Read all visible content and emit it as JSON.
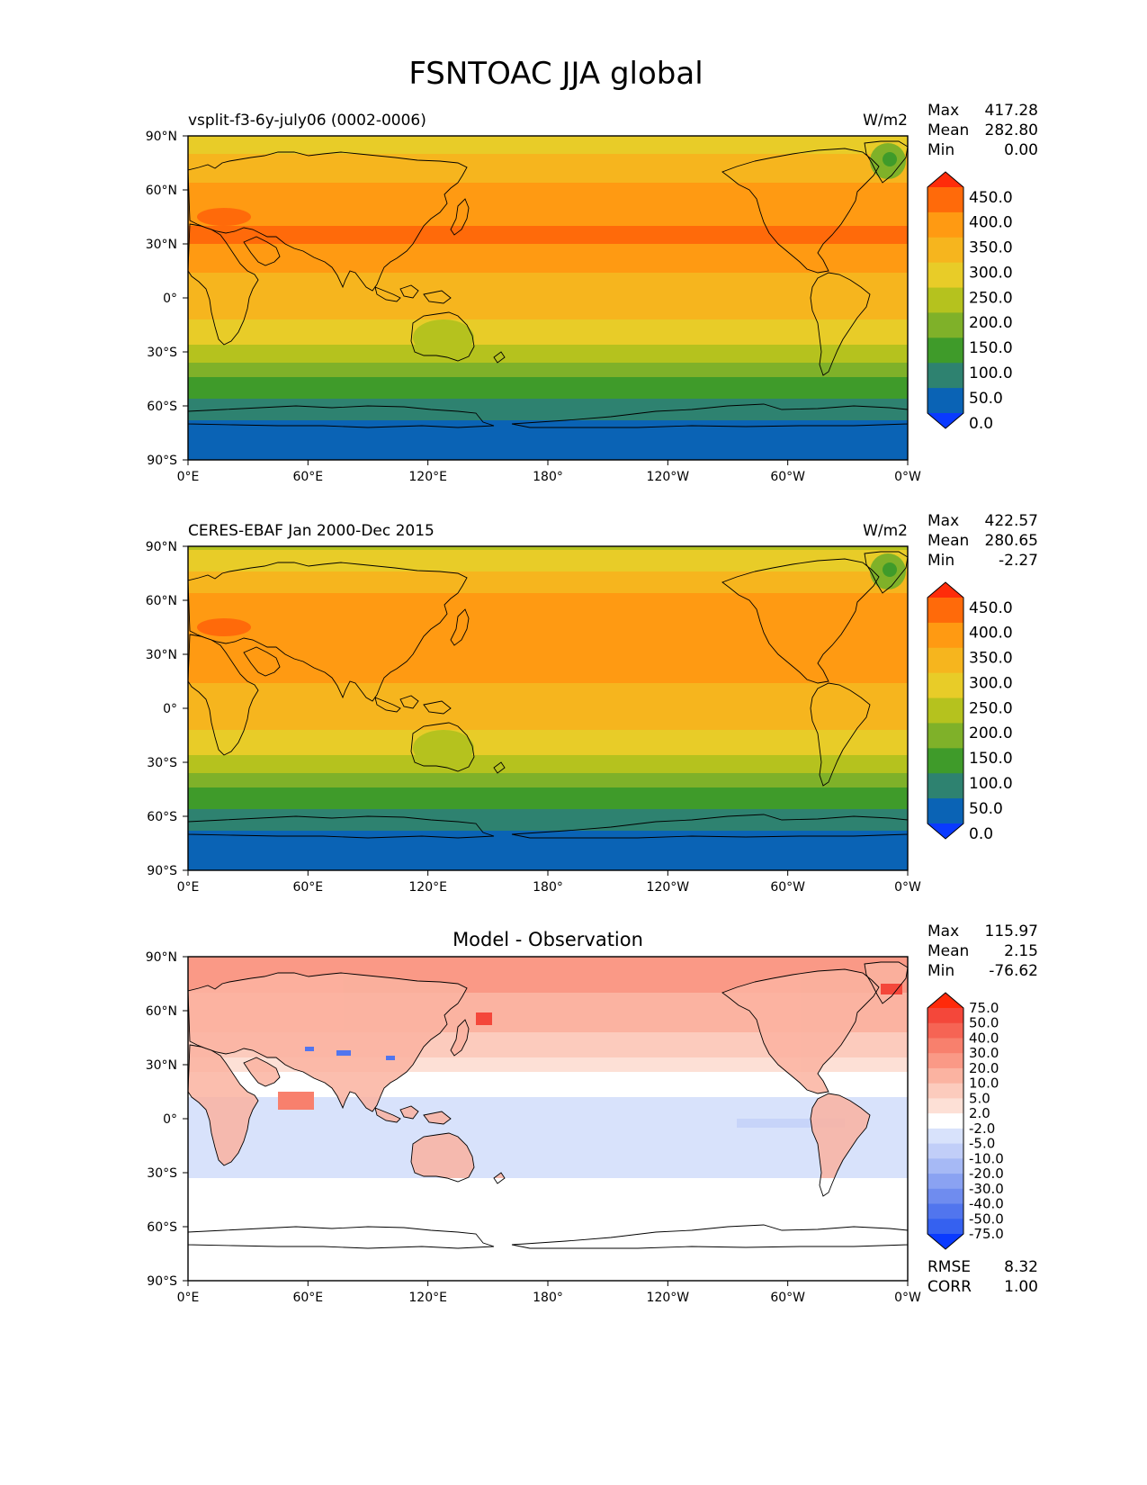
{
  "figure_title": "FSNTOAC JJA global",
  "stat_labels": {
    "max": "Max",
    "mean": "Mean",
    "min": "Min",
    "rmse": "RMSE",
    "corr": "CORR"
  },
  "lat_ticks": [
    "90°N",
    "60°N",
    "30°N",
    "0°",
    "30°S",
    "60°S",
    "90°S"
  ],
  "lon_ticks": [
    "0°E",
    "60°E",
    "120°E",
    "180°",
    "120°W",
    "60°W",
    "0°W"
  ],
  "chart_data": [
    {
      "type": "heatmap",
      "panel": "test",
      "title_left": "vsplit-f3-6y-july06 (0002-0006)",
      "title_center": "",
      "units": "W/m2",
      "stats": {
        "max": "417.28",
        "mean": "282.80",
        "min": "0.00"
      },
      "colorbar_levels": [
        "450.0",
        "400.0",
        "350.0",
        "300.0",
        "250.0",
        "200.0",
        "150.0",
        "100.0",
        "50.0",
        "0.0"
      ],
      "colorbar_colors": [
        "#ff2c0a",
        "#ff6a0a",
        "#ff9a12",
        "#f6b51e",
        "#e8cc28",
        "#b5c21e",
        "#7fb129",
        "#3f9b2a",
        "#2e8270",
        "#0a63b5",
        "#0a3aff"
      ],
      "zonal_profile_lat": [
        90,
        80,
        70,
        60,
        50,
        40,
        30,
        20,
        10,
        0,
        -10,
        -20,
        -30,
        -40,
        -50,
        -60,
        -70,
        -80,
        -90
      ],
      "zonal_profile_wm2": [
        290,
        300,
        330,
        360,
        380,
        400,
        400,
        370,
        340,
        330,
        310,
        270,
        230,
        170,
        120,
        80,
        40,
        20,
        0
      ],
      "xlabel": "",
      "ylabel": ""
    },
    {
      "type": "heatmap",
      "panel": "reference",
      "title_left": "CERES-EBAF Jan 2000-Dec 2015",
      "title_center": "",
      "units": "W/m2",
      "stats": {
        "max": "422.57",
        "mean": "280.65",
        "min": "-2.27"
      },
      "colorbar_levels": [
        "450.0",
        "400.0",
        "350.0",
        "300.0",
        "250.0",
        "200.0",
        "150.0",
        "100.0",
        "50.0",
        "0.0"
      ],
      "colorbar_colors": [
        "#ff2c0a",
        "#ff6a0a",
        "#ff9a12",
        "#f6b51e",
        "#e8cc28",
        "#b5c21e",
        "#7fb129",
        "#3f9b2a",
        "#2e8270",
        "#0a63b5",
        "#0a3aff"
      ],
      "zonal_profile_lat": [
        90,
        80,
        70,
        60,
        50,
        40,
        30,
        20,
        10,
        0,
        -10,
        -20,
        -30,
        -40,
        -50,
        -60,
        -70,
        -80,
        -90
      ],
      "zonal_profile_wm2": [
        240,
        280,
        330,
        360,
        380,
        400,
        395,
        370,
        340,
        330,
        310,
        270,
        230,
        170,
        120,
        80,
        40,
        10,
        0
      ],
      "xlabel": "",
      "ylabel": ""
    },
    {
      "type": "heatmap",
      "panel": "difference",
      "title_left": "",
      "title_center": "Model - Observation",
      "units": "",
      "stats": {
        "max": "115.97",
        "mean": "2.15",
        "min": "-76.62",
        "rmse": "8.32",
        "corr": "1.00"
      },
      "colorbar_levels": [
        "75.0",
        "50.0",
        "40.0",
        "30.0",
        "20.0",
        "10.0",
        "5.0",
        "2.0",
        "-2.0",
        "-5.0",
        "-10.0",
        "-20.0",
        "-30.0",
        "-40.0",
        "-50.0",
        "-75.0"
      ],
      "colorbar_colors": [
        "#ff2a0a",
        "#f4473a",
        "#f66454",
        "#f8806d",
        "#fa9986",
        "#fbb3a1",
        "#fccbbd",
        "#fde0d6",
        "#ffffff",
        "#d8e2fb",
        "#c1cef8",
        "#a6b9f5",
        "#8aa2f2",
        "#6f8cef",
        "#5175ee",
        "#3561f0",
        "#0a3aff"
      ],
      "zonal_profile_lat": [
        90,
        60,
        30,
        0,
        -30,
        -60,
        -90
      ],
      "zonal_profile_wm2": [
        30,
        15,
        3,
        -5,
        -3,
        1,
        0
      ],
      "xlabel": "",
      "ylabel": ""
    }
  ]
}
